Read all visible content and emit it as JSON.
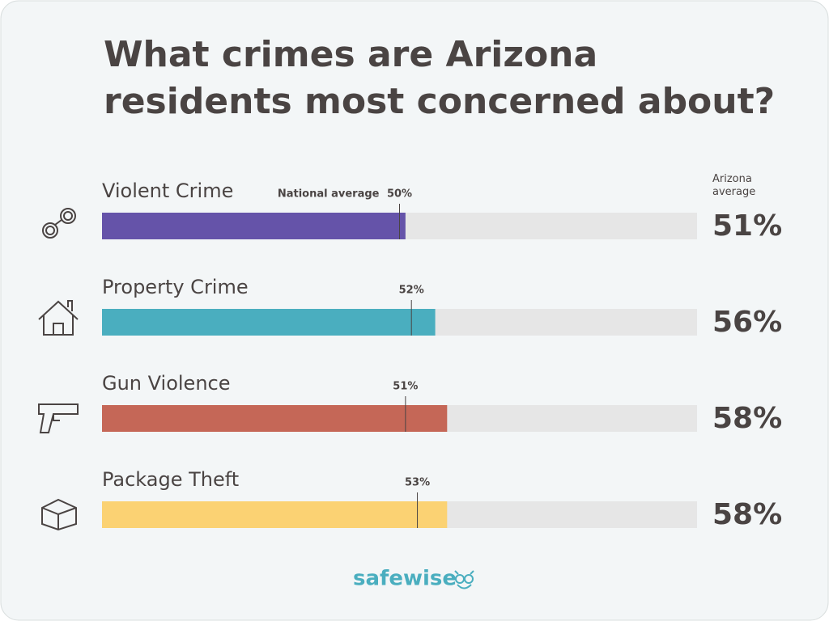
{
  "chart_data": {
    "type": "bar",
    "title": "What crimes are Arizona residents most concerned about?",
    "categories": [
      "Violent Crime",
      "Property Crime",
      "Gun Violence",
      "Package Theft"
    ],
    "xlim": [
      0,
      100
    ],
    "series": [
      {
        "name": "Arizona average",
        "values": [
          51,
          56,
          58,
          58
        ],
        "value_labels": [
          "51%",
          "56%",
          "58%",
          "58%"
        ],
        "colors": [
          "#6553a9",
          "#4aaebf",
          "#c56757",
          "#fbd273"
        ]
      },
      {
        "name": "National average",
        "values": [
          50,
          52,
          51,
          53
        ],
        "value_labels": [
          "50%",
          "52%",
          "51%",
          "53%"
        ],
        "color": "#4a4443"
      }
    ],
    "track_color": "#e6e6e6",
    "brand": "safewise"
  }
}
